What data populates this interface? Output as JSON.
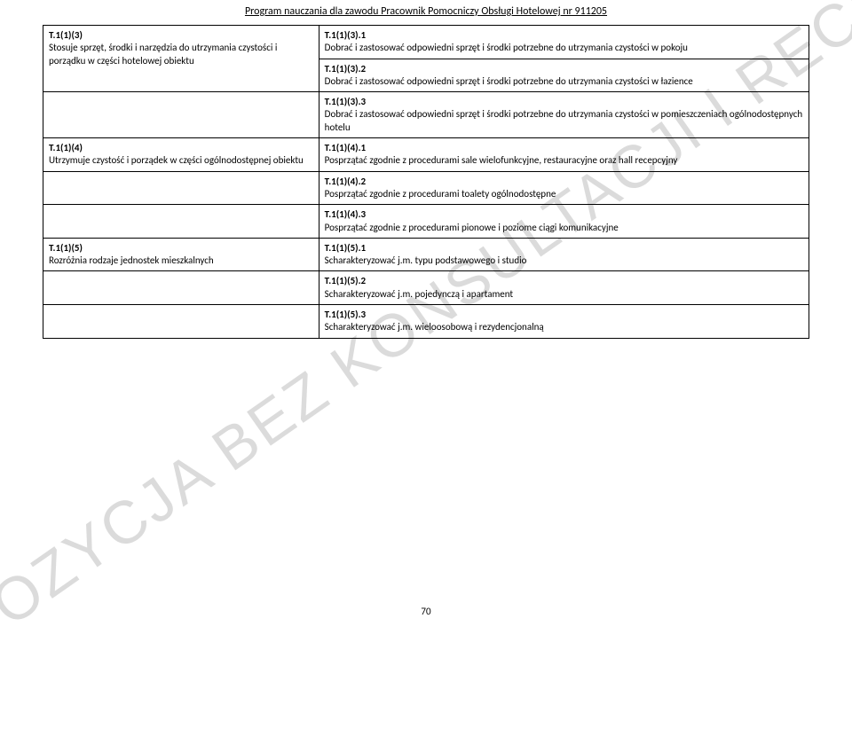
{
  "header": {
    "title": "Program nauczania dla zawodu Pracownik Pomocniczy Obsługi Hotelowej nr 911205"
  },
  "watermark": {
    "text": "PROPOZYCJA BEZ KONSULTACJI I RECENZJI"
  },
  "page": {
    "number": "70"
  },
  "rows": [
    {
      "left_code": "T.1(1)(3)",
      "left_text": "Stosuje sprzęt, środki i narzędzia do utrzymania czystości i porządku w części hotelowej obiektu",
      "right_code": "T.1(1)(3).1",
      "right_text": "Dobrać i zastosować odpowiedni sprzęt i środki potrzebne do utrzymania czystości w pokoju"
    },
    {
      "left_code": "",
      "left_text": "",
      "right_code": "T.1(1)(3).2",
      "right_text": "Dobrać i zastosować odpowiedni sprzęt i środki potrzebne do utrzymania czystości w łazience"
    },
    {
      "left_code": "",
      "left_text": "",
      "right_code": "T.1(1)(3).3",
      "right_text": "Dobrać i zastosować odpowiedni sprzęt i środki potrzebne do utrzymania czystości w pomieszczeniach ogólnodostępnych hotelu"
    },
    {
      "left_code": "T.1(1)(4)",
      "left_text": "Utrzymuje czystość i porządek w części ogólnodostępnej obiektu",
      "right_code": "T.1(1)(4).1",
      "right_text": "Posprzątać zgodnie z procedurami sale wielofunkcyjne, restauracyjne oraz hall recepcyjny"
    },
    {
      "left_code": "",
      "left_text": "",
      "right_code": "T.1(1)(4).2",
      "right_text": "Posprzątać zgodnie z procedurami toalety ogólnodostępne"
    },
    {
      "left_code": "",
      "left_text": "",
      "right_code": "T.1(1)(4).3",
      "right_text": "Posprzątać zgodnie z procedurami pionowe i poziome ciągi komunikacyjne"
    },
    {
      "left_code": "T.1(1)(5)",
      "left_text": "Rozróżnia rodzaje jednostek mieszkalnych",
      "right_code": "T.1(1)(5).1",
      "right_text": "Scharakteryzować j.m. typu podstawowego i studio"
    },
    {
      "left_code": "",
      "left_text": "",
      "right_code": "T.1(1)(5).2",
      "right_text": "Scharakteryzować j.m. pojedynczą i apartament"
    },
    {
      "left_code": "",
      "left_text": "",
      "right_code": "T.1(1)(5).3",
      "right_text": "Scharakteryzować j.m. wieloosobową i rezydencjonalną"
    }
  ]
}
